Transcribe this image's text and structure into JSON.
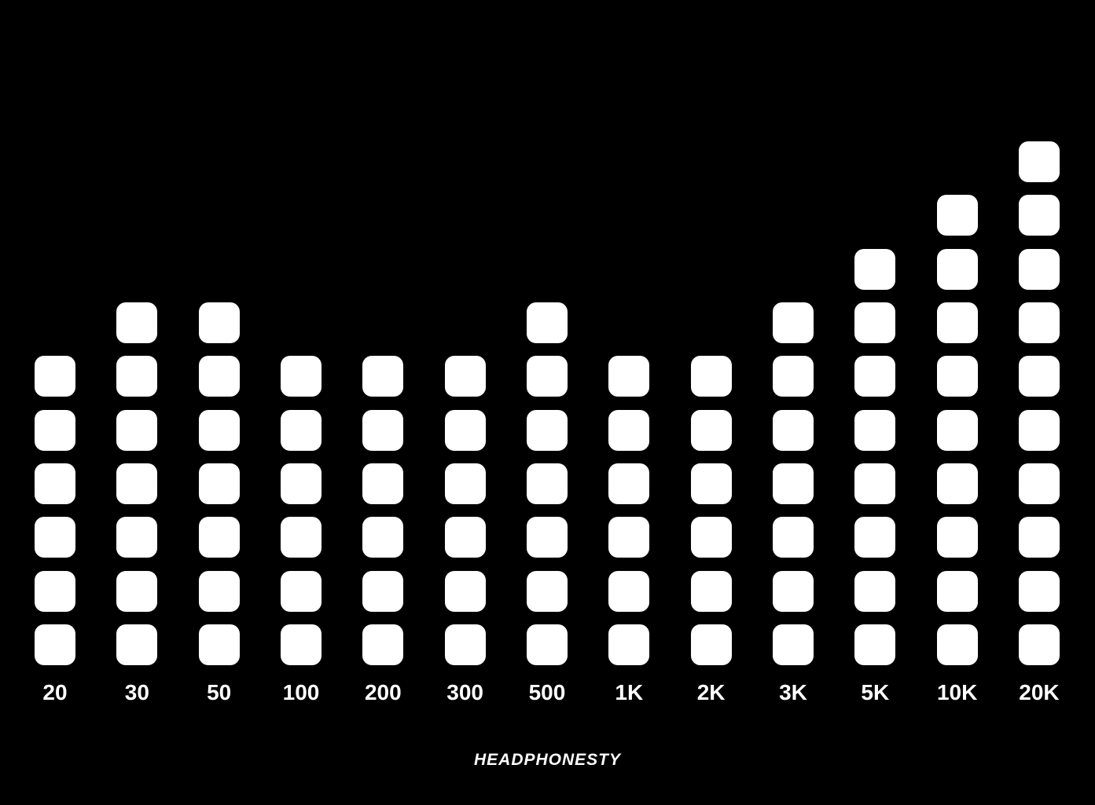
{
  "chart_data": {
    "type": "bar",
    "style": "equalizer-blocks",
    "title": "",
    "xlabel": "",
    "ylabel": "",
    "categories": [
      "20",
      "30",
      "50",
      "100",
      "200",
      "300",
      "500",
      "1K",
      "2K",
      "3K",
      "5K",
      "10K",
      "20K"
    ],
    "values": [
      6,
      7,
      7,
      6,
      6,
      6,
      7,
      6,
      6,
      7,
      8,
      9,
      10
    ],
    "ylim": [
      0,
      10
    ],
    "grid": false,
    "legend": false
  },
  "footer": {
    "brand": "HEADPHONESTY"
  },
  "colors": {
    "background": "#000000",
    "block": "#ffffff",
    "label": "#ffffff"
  }
}
